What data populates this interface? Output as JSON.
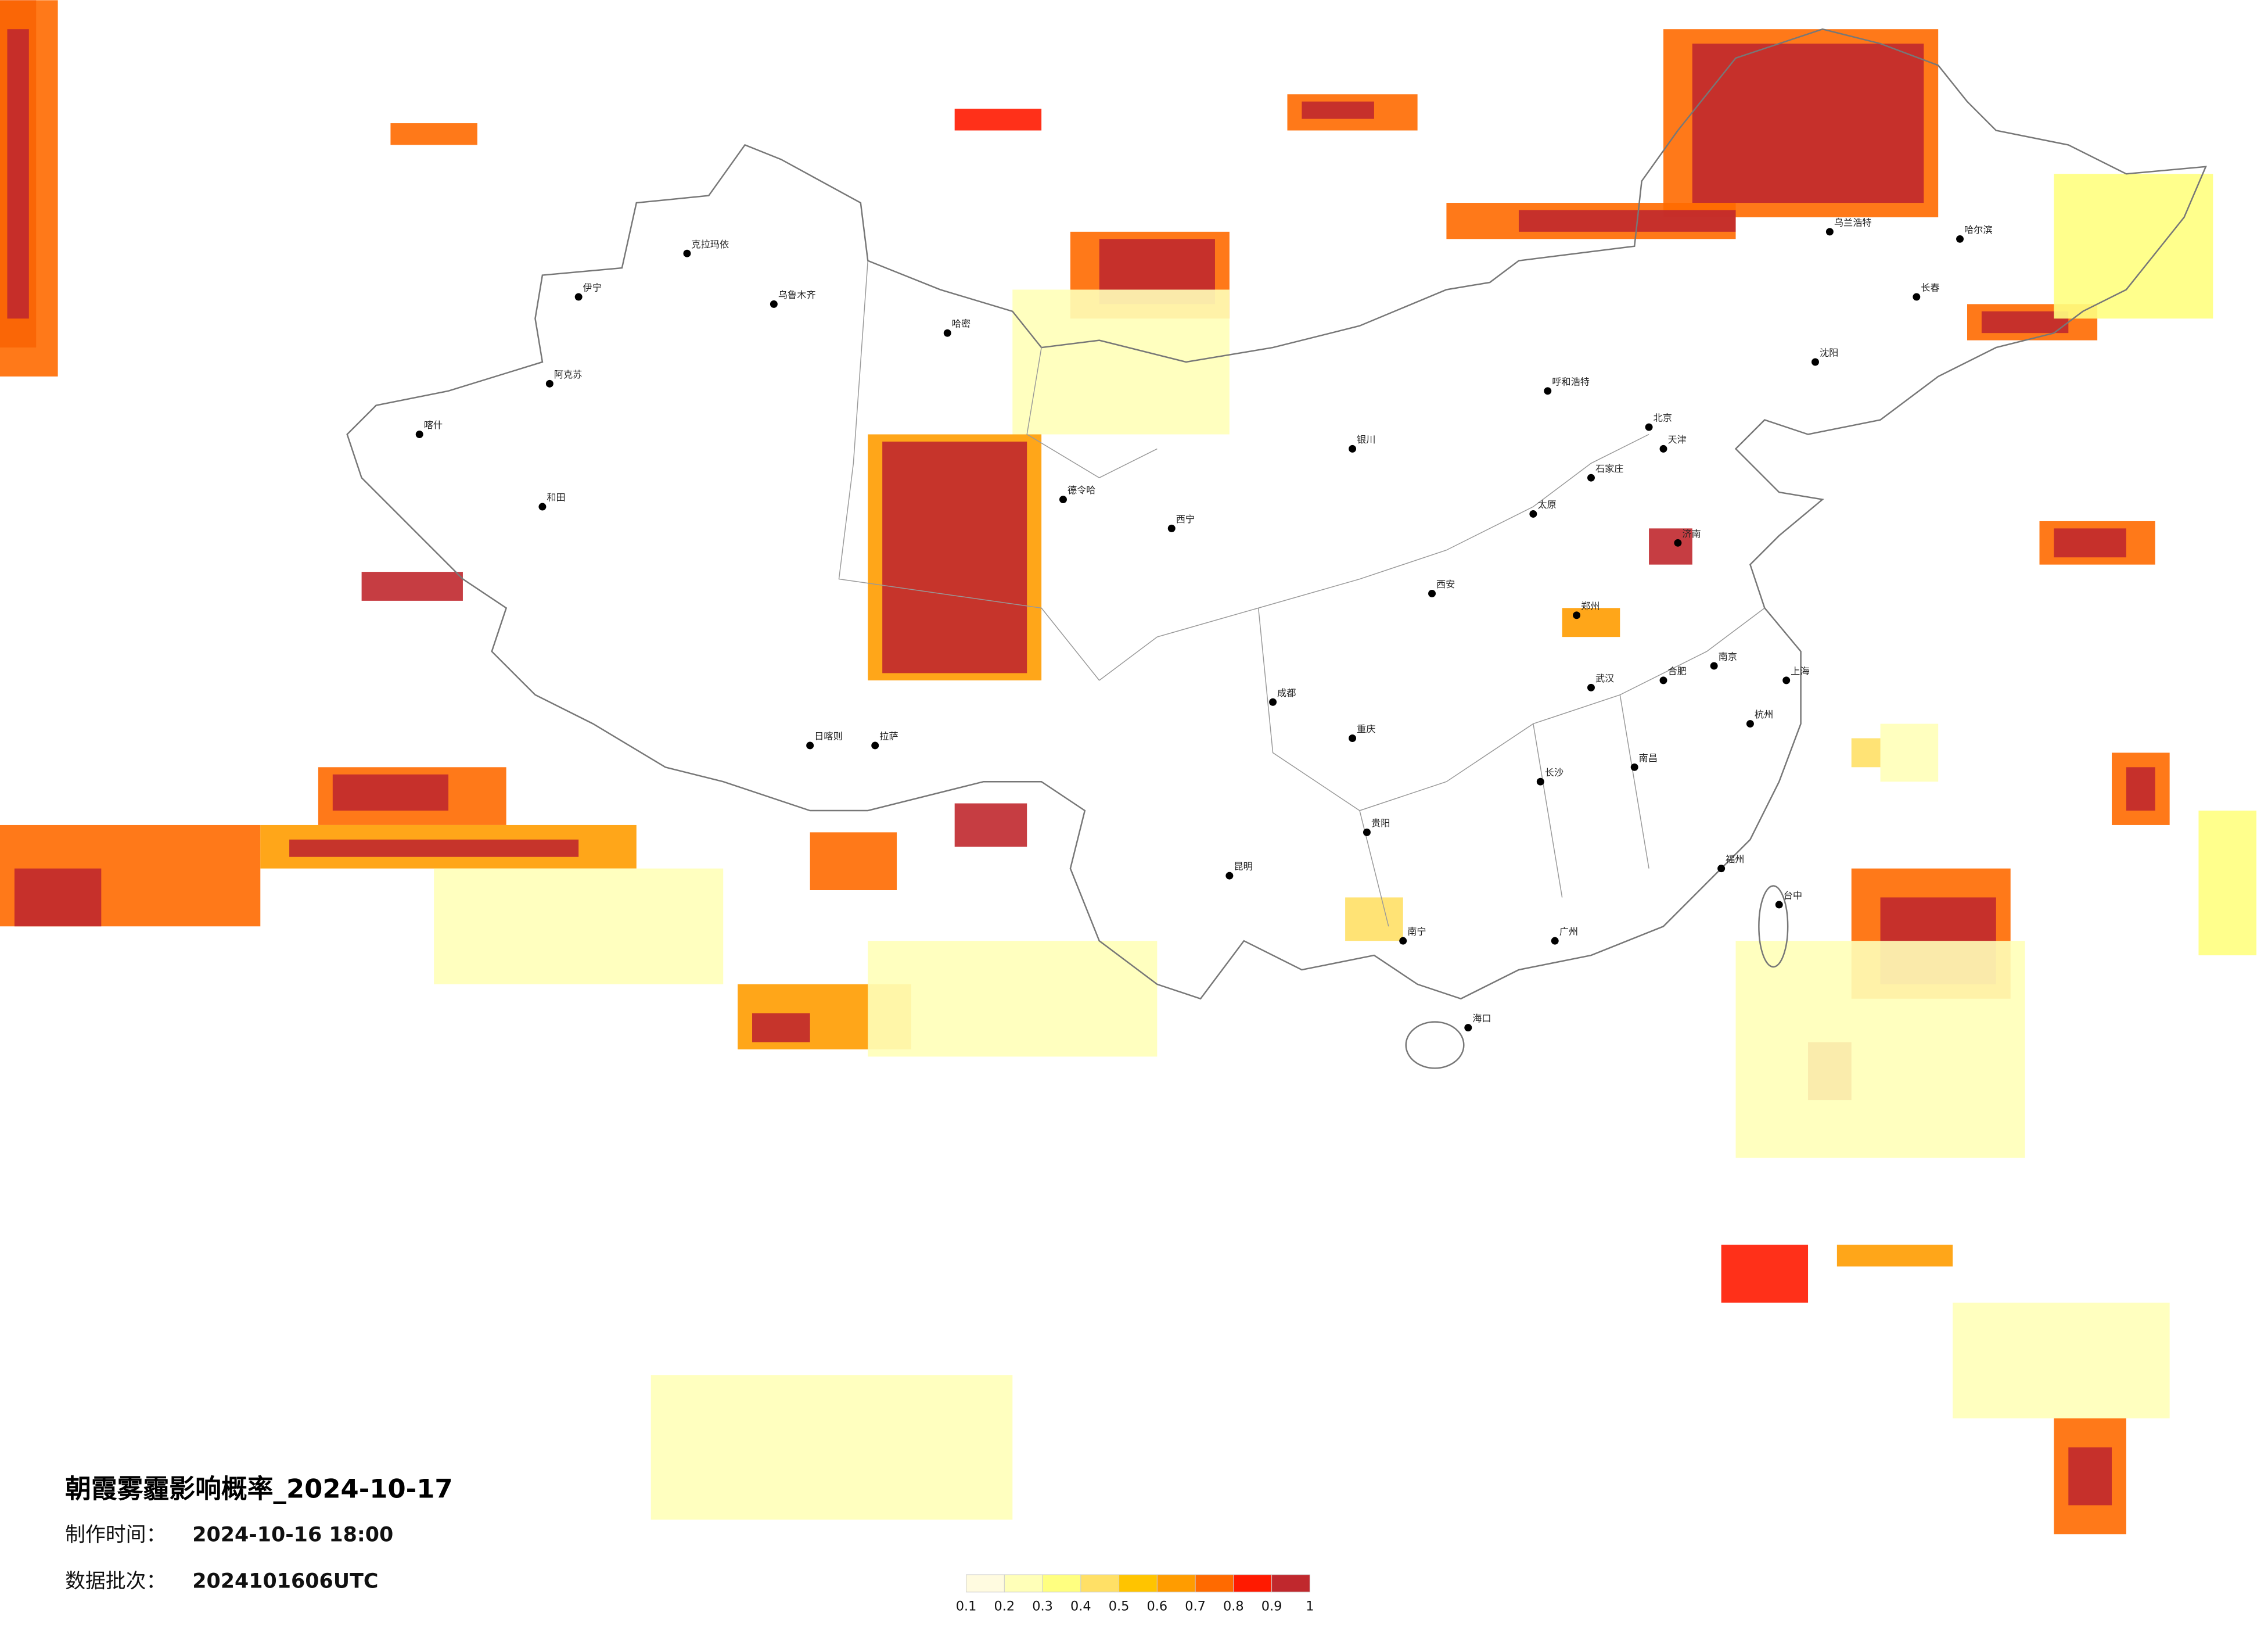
{
  "title": "朝霞雾霾影响概率_2024-10-17",
  "issue_time": {
    "label": "制作时间：",
    "value": "2024-10-16 18:00"
  },
  "data_batch": {
    "label": "数据批次：",
    "value": "2024101606UTC"
  },
  "legend": {
    "ticks": [
      0.1,
      0.2,
      0.3,
      0.4,
      0.5,
      0.6,
      0.7,
      0.8,
      0.9,
      1
    ],
    "colors": [
      "#fffbe0",
      "#ffffb8",
      "#ffff80",
      "#ffe066",
      "#ffc400",
      "#ff9c00",
      "#ff6a00",
      "#ff1a00",
      "#c0282d"
    ]
  },
  "cities": [
    "克拉玛依",
    "乌鲁木齐",
    "哈密",
    "喀什",
    "和田",
    "拉萨",
    "日喀则",
    "西宁",
    "银川",
    "呼和浩特",
    "北京",
    "天津",
    "石家庄",
    "太原",
    "济南",
    "郑州",
    "西安",
    "成都",
    "重庆",
    "贵阳",
    "昆明",
    "南宁",
    "广州",
    "长沙",
    "武汉",
    "南昌",
    "合肥",
    "南京",
    "上海",
    "杭州",
    "福州",
    "沈阳",
    "长春",
    "哈尔滨",
    "乌兰浩特",
    "海口",
    "台中",
    "伊宁",
    "阿克苏",
    "德令哈"
  ]
}
